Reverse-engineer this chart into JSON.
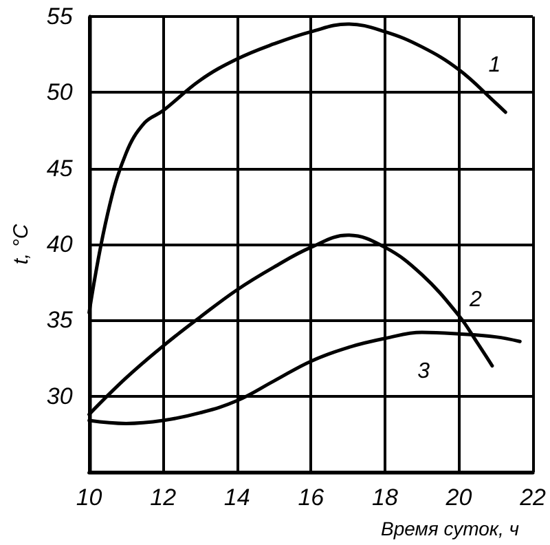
{
  "chart_data": {
    "type": "line",
    "xlabel": "Время суток, ч",
    "ylabel": "t, °C",
    "xlim": [
      10,
      22
    ],
    "xticks": [
      10,
      12,
      14,
      16,
      18,
      20,
      22
    ],
    "ylim": [
      25,
      55
    ],
    "yticks": [
      {
        "value": 25,
        "label": null
      },
      30,
      35,
      40,
      45,
      50,
      55
    ],
    "grid": true,
    "marker": "none",
    "line_style": "solid",
    "legend": false,
    "series": [
      {
        "name": "1",
        "color": "#000000",
        "x": [
          10,
          10.5,
          11,
          11.5,
          12,
          13,
          14,
          15,
          16,
          17,
          18,
          19,
          20,
          21,
          21.26
        ],
        "values": [
          35.5,
          42,
          46,
          48,
          48.8,
          50.8,
          52.2,
          53.2,
          54,
          54.5,
          54,
          53,
          51.5,
          49.3,
          48.7
        ]
      },
      {
        "name": "2",
        "color": "#000000",
        "x": [
          10,
          11,
          12,
          13,
          14,
          15,
          16,
          17,
          18,
          19,
          20,
          20.5,
          20.9
        ],
        "values": [
          28.8,
          31.2,
          33.3,
          35.2,
          37,
          38.5,
          39.8,
          40.6,
          39.8,
          38,
          35.3,
          33.5,
          32
        ]
      },
      {
        "name": "3",
        "color": "#000000",
        "x": [
          10,
          11,
          12,
          13,
          14,
          15,
          16,
          17,
          18,
          19,
          20,
          21,
          21.65
        ],
        "values": [
          28.4,
          28.2,
          28.4,
          28.9,
          29.7,
          31,
          32.3,
          33.2,
          33.8,
          34.2,
          34.1,
          33.9,
          33.6
        ]
      }
    ]
  }
}
